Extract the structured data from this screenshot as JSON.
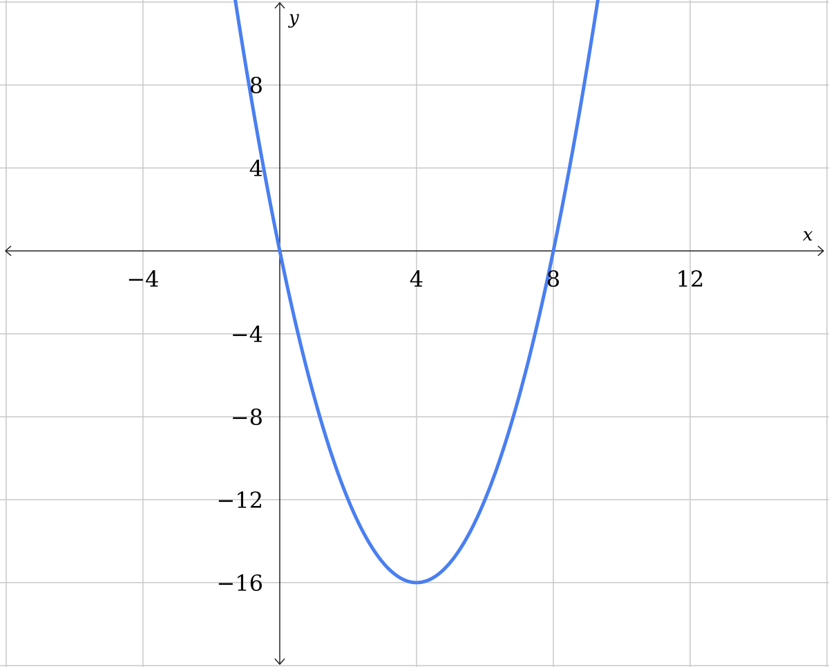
{
  "chart_data": {
    "type": "line",
    "title": "",
    "xlabel": "x",
    "ylabel": "y",
    "xlim": [
      -8.18,
      16.06
    ],
    "ylim": [
      -20.07,
      12.1
    ],
    "grid": true,
    "x_ticks": [
      -4,
      4,
      8,
      12
    ],
    "x_tick_labels": [
      "−4",
      "4",
      "8",
      "12"
    ],
    "y_ticks": [
      8,
      4,
      -4,
      -8,
      -12,
      -16
    ],
    "y_tick_labels": [
      "8",
      "4",
      "−4",
      "−8",
      "−12",
      "−16"
    ],
    "series": [
      {
        "function": "y = x^2 - 8x",
        "color": "#4a7ff0",
        "points": [
          [
            -1.3,
            12.1
          ],
          [
            0,
            0
          ],
          [
            2,
            -12
          ],
          [
            4,
            -16
          ],
          [
            6,
            -12
          ],
          [
            8,
            0
          ],
          [
            9.3,
            12.1
          ]
        ]
      }
    ]
  }
}
